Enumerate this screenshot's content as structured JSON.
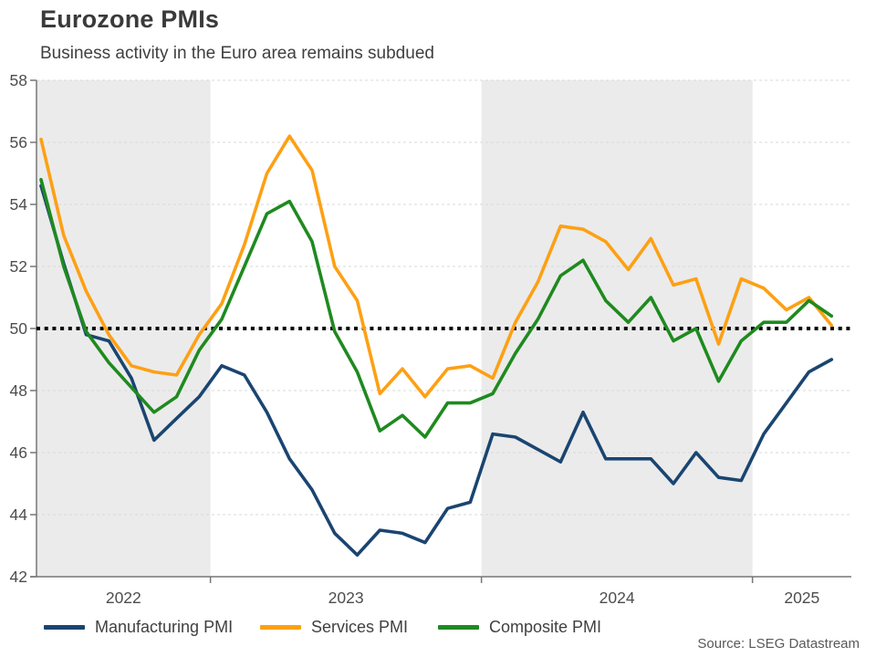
{
  "header": {
    "title": "Eurozone PMIs",
    "subtitle": "Business activity in the Euro area remains subdued"
  },
  "source_note": "Source: LSEG Datastream",
  "colors": {
    "manufacturing": "#1a4571",
    "services": "#fda014",
    "composite": "#1f8a1f",
    "shaded_band": "#ebebeb",
    "gridline": "#d9d9d9",
    "axis": "#767676",
    "tick_text": "#4d4d4d",
    "threshold_line": "#000000"
  },
  "chart_data": {
    "type": "line",
    "x_unit": "month",
    "x_range_start": "2022-05",
    "x_range_end": "2025-04",
    "x_tick_labels": [
      "2022",
      "2023",
      "2024",
      "2025"
    ],
    "ylim": [
      42,
      58
    ],
    "y_ticks": [
      42,
      44,
      46,
      48,
      50,
      52,
      54,
      56,
      58
    ],
    "threshold_value": 50,
    "grid": "on",
    "legend_position": "bottom",
    "shaded_years": [
      "2022",
      "2024"
    ],
    "series": [
      {
        "name": "Manufacturing PMI",
        "color_key": "manufacturing",
        "values": [
          54.6,
          52.1,
          49.8,
          49.6,
          48.4,
          46.4,
          47.1,
          47.8,
          48.8,
          48.5,
          47.3,
          45.8,
          44.8,
          43.4,
          42.7,
          43.5,
          43.4,
          43.1,
          44.2,
          44.4,
          46.6,
          46.5,
          46.1,
          45.7,
          47.3,
          45.8,
          45.8,
          45.8,
          45.0,
          46.0,
          45.2,
          45.1,
          46.6,
          47.6,
          48.6,
          49.0
        ]
      },
      {
        "name": "Services PMI",
        "color_key": "services",
        "values": [
          56.1,
          53.0,
          51.2,
          49.8,
          48.8,
          48.6,
          48.5,
          49.8,
          50.8,
          52.7,
          55.0,
          56.2,
          55.1,
          52.0,
          50.9,
          47.9,
          48.7,
          47.8,
          48.7,
          48.8,
          48.4,
          50.2,
          51.5,
          53.3,
          53.2,
          52.8,
          51.9,
          52.9,
          51.4,
          51.6,
          49.5,
          51.6,
          51.3,
          50.6,
          51.0,
          50.1
        ]
      },
      {
        "name": "Composite PMI",
        "color_key": "composite",
        "values": [
          54.8,
          52.0,
          49.9,
          48.9,
          48.1,
          47.3,
          47.8,
          49.3,
          50.3,
          52.0,
          53.7,
          54.1,
          52.8,
          49.9,
          48.6,
          46.7,
          47.2,
          46.5,
          47.6,
          47.6,
          47.9,
          49.2,
          50.3,
          51.7,
          52.2,
          50.9,
          50.2,
          51.0,
          49.6,
          50.0,
          48.3,
          49.6,
          50.2,
          50.2,
          50.9,
          50.4
        ]
      }
    ]
  }
}
